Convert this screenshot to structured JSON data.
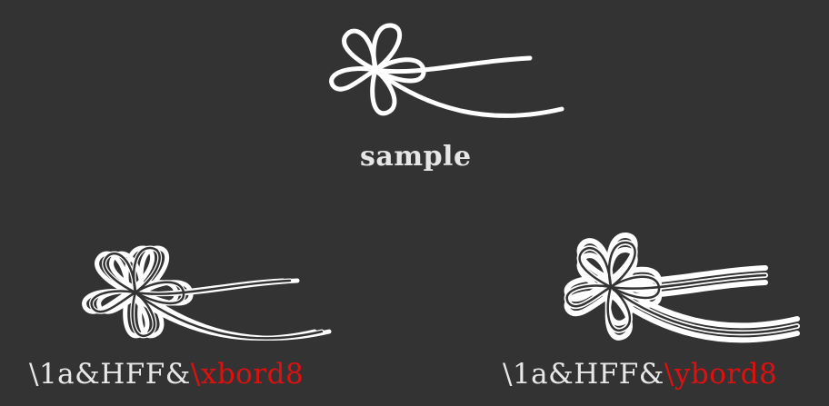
{
  "samples": {
    "sample": {
      "caption": "sample"
    },
    "xbord": {
      "caption_prefix": "\\1a&HFF&",
      "caption_tag": "\\xbord8"
    },
    "ybord": {
      "caption_prefix": "\\1a&HFF&",
      "caption_tag": "\\ybord8"
    }
  },
  "colors": {
    "background": "#333333",
    "glyph": "#ffffff",
    "caption_text": "#e8e8e8",
    "tag_highlight": "#e01010"
  },
  "icons": {
    "glyph": "flower-ribbon-icon"
  }
}
